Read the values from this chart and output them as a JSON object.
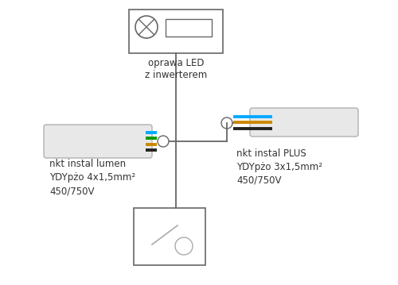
{
  "bg_color": "#ffffff",
  "line_color": "#666666",
  "text_color": "#333333",
  "wire_colors_4": [
    "#00aaff",
    "#009900",
    "#cc8800",
    "#222222"
  ],
  "wire_colors_3": [
    "#00aaff",
    "#cc8800",
    "#222222"
  ],
  "label_left": [
    "nkt instal lumen",
    "YDYpżo 4x1,5mm²",
    "450/750V"
  ],
  "label_right": [
    "nkt instal PLUS",
    "YDYpżo 3x1,5mm²",
    "450/750V"
  ],
  "led_label": [
    "oprawa LED",
    "z inwerterem"
  ],
  "font_size": 8.5
}
